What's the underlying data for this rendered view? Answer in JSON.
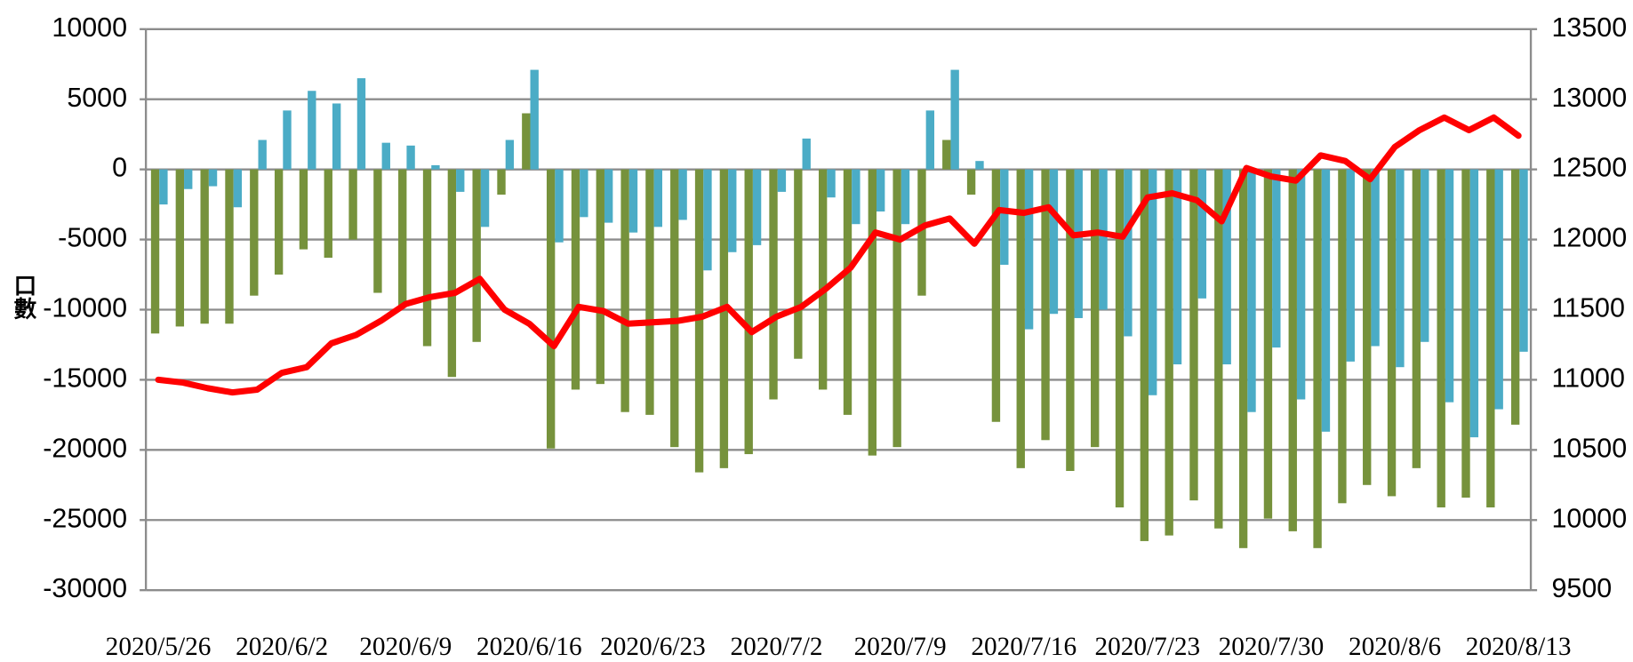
{
  "chart_data": {
    "type": "bar-line",
    "ylabel": "口數",
    "categories": [
      "2020/5/26",
      null,
      null,
      null,
      null,
      "2020/6/2",
      null,
      null,
      null,
      null,
      "2020/6/9",
      null,
      null,
      null,
      null,
      "2020/6/16",
      null,
      null,
      null,
      null,
      "2020/6/23",
      null,
      null,
      null,
      null,
      "2020/7/2",
      null,
      null,
      null,
      null,
      "2020/7/9",
      null,
      null,
      null,
      null,
      "2020/7/16",
      null,
      null,
      null,
      null,
      "2020/7/23",
      null,
      null,
      null,
      null,
      "2020/7/30",
      null,
      null,
      null,
      null,
      "2020/8/6",
      null,
      null,
      null,
      null,
      "2020/8/13"
    ],
    "series": [
      {
        "type": "bar",
        "color": "#76923c",
        "axis": "y",
        "values": [
          -11700,
          -11200,
          -11000,
          -11000,
          -9000,
          -7500,
          -5700,
          -6300,
          -5000,
          -8800,
          -9800,
          -12600,
          -14800,
          -12300,
          -1800,
          4000,
          -19900,
          -15700,
          -15300,
          -17300,
          -17500,
          -19800,
          -21600,
          -21300,
          -20300,
          -16400,
          -13500,
          -15700,
          -17500,
          -20400,
          -19800,
          -9000,
          2100,
          -1800,
          -18000,
          -21300,
          -19300,
          -21500,
          -19800,
          -24100,
          -26500,
          -26100,
          -23600,
          -25600,
          -27000,
          -24900,
          -25800,
          -27000,
          -23800,
          -22500,
          -23300,
          -21300,
          -24100,
          -23400,
          -24100,
          -18200
        ]
      },
      {
        "type": "bar",
        "color": "#4bacc6",
        "axis": "y",
        "values": [
          -2500,
          -1400,
          -1200,
          -2700,
          2100,
          4200,
          5600,
          4700,
          6500,
          1900,
          1700,
          300,
          -1600,
          -4100,
          2100,
          7100,
          -5200,
          -3400,
          -3800,
          -4500,
          -4100,
          -3600,
          -7200,
          -5900,
          -5400,
          -1600,
          2200,
          -2000,
          -3900,
          -3000,
          -3900,
          4200,
          7100,
          600,
          -6800,
          -11400,
          -10300,
          -10600,
          -10000,
          -11900,
          -16100,
          -13900,
          -9200,
          -13900,
          -17300,
          -12700,
          -16400,
          -18700,
          -13700,
          -12600,
          -14100,
          -12300,
          -16600,
          -19100,
          -17100,
          -13000
        ]
      },
      {
        "type": "line",
        "color": "#ff0000",
        "axis": "y2",
        "values": [
          11000,
          10980,
          10940,
          10910,
          10930,
          11050,
          11090,
          11260,
          11320,
          11420,
          11540,
          11590,
          11620,
          11720,
          11500,
          11400,
          11240,
          11520,
          11490,
          11400,
          11410,
          11420,
          11450,
          11520,
          11340,
          11450,
          11520,
          11650,
          11800,
          12050,
          12000,
          12100,
          12150,
          11970,
          12210,
          12190,
          12230,
          12030,
          12050,
          12020,
          12300,
          12330,
          12280,
          12130,
          12510,
          12450,
          12420,
          12600,
          12560,
          12430,
          12660,
          12780,
          12870,
          12780,
          12870,
          12740
        ]
      }
    ],
    "ylim": [
      -30000,
      10000
    ],
    "yticks": [
      -30000,
      -25000,
      -20000,
      -15000,
      -10000,
      -5000,
      0,
      5000,
      10000
    ],
    "y2lim": [
      9500,
      13500
    ],
    "y2ticks": [
      9500,
      10000,
      10500,
      11000,
      11500,
      12000,
      12500,
      13000,
      13500
    ],
    "grid": true
  }
}
